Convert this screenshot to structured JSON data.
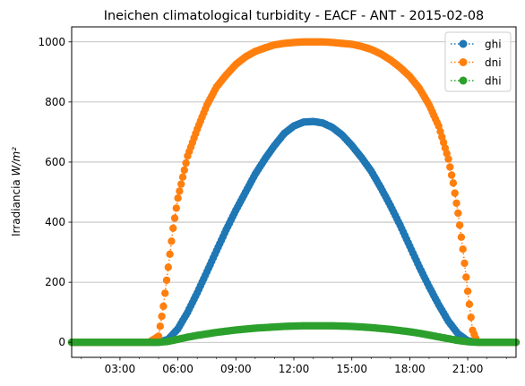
{
  "chart_data": {
    "type": "line",
    "title": "Ineichen climatological turbidity - EACF - ANT - 2015-02-08",
    "xlabel": "",
    "ylabel_prefix": "Irradiancia ",
    "ylabel_unit": "W/m²",
    "x_range_hours": [
      0.5,
      23.5
    ],
    "ylim": [
      -50,
      1050
    ],
    "x_tick_labels": [
      {
        "hour": 3,
        "label": "03:00"
      },
      {
        "hour": 6,
        "label": "06:00"
      },
      {
        "hour": 9,
        "label": "09:00"
      },
      {
        "hour": 12,
        "label": "12:00"
      },
      {
        "hour": 15,
        "label": "15:00"
      },
      {
        "hour": 18,
        "label": "18:00"
      },
      {
        "hour": 21,
        "label": "21:00"
      }
    ],
    "y_ticks": [
      0,
      200,
      400,
      600,
      800,
      1000
    ],
    "grid": "horizontal",
    "legend_position": "top-right",
    "series": [
      {
        "name": "ghi",
        "color": "#1f77b4",
        "points": [
          [
            0.5,
            0
          ],
          [
            1,
            0
          ],
          [
            1.5,
            0
          ],
          [
            2,
            0
          ],
          [
            2.5,
            0
          ],
          [
            3,
            0
          ],
          [
            3.5,
            0
          ],
          [
            4,
            0
          ],
          [
            4.5,
            0
          ],
          [
            5,
            0
          ],
          [
            5.5,
            10
          ],
          [
            6,
            45
          ],
          [
            6.5,
            100
          ],
          [
            7,
            165
          ],
          [
            7.5,
            235
          ],
          [
            8,
            305
          ],
          [
            8.5,
            375
          ],
          [
            9,
            440
          ],
          [
            9.5,
            500
          ],
          [
            10,
            560
          ],
          [
            10.5,
            610
          ],
          [
            11,
            655
          ],
          [
            11.5,
            695
          ],
          [
            12,
            720
          ],
          [
            12.5,
            733
          ],
          [
            13,
            735
          ],
          [
            13.5,
            730
          ],
          [
            14,
            715
          ],
          [
            14.5,
            690
          ],
          [
            15,
            655
          ],
          [
            15.5,
            615
          ],
          [
            16,
            570
          ],
          [
            16.5,
            515
          ],
          [
            17,
            455
          ],
          [
            17.5,
            390
          ],
          [
            18,
            320
          ],
          [
            18.5,
            250
          ],
          [
            19,
            185
          ],
          [
            19.5,
            125
          ],
          [
            20,
            70
          ],
          [
            20.5,
            28
          ],
          [
            21,
            5
          ],
          [
            21.5,
            0
          ],
          [
            22,
            0
          ],
          [
            22.5,
            0
          ],
          [
            23,
            0
          ],
          [
            23.5,
            0
          ]
        ]
      },
      {
        "name": "dni",
        "color": "#ff7f0e",
        "points": [
          [
            0.5,
            0
          ],
          [
            1,
            0
          ],
          [
            1.5,
            0
          ],
          [
            2,
            0
          ],
          [
            2.5,
            0
          ],
          [
            3,
            0
          ],
          [
            3.5,
            0
          ],
          [
            4,
            0
          ],
          [
            4.5,
            0
          ],
          [
            5,
            20
          ],
          [
            5.25,
            120
          ],
          [
            5.5,
            250
          ],
          [
            5.75,
            380
          ],
          [
            6,
            480
          ],
          [
            6.5,
            620
          ],
          [
            7,
            710
          ],
          [
            7.5,
            790
          ],
          [
            8,
            850
          ],
          [
            8.5,
            890
          ],
          [
            9,
            925
          ],
          [
            9.5,
            950
          ],
          [
            10,
            968
          ],
          [
            10.5,
            980
          ],
          [
            11,
            990
          ],
          [
            11.5,
            995
          ],
          [
            12,
            998
          ],
          [
            12.5,
            1000
          ],
          [
            13,
            1000
          ],
          [
            13.5,
            1000
          ],
          [
            14,
            998
          ],
          [
            14.5,
            995
          ],
          [
            15,
            992
          ],
          [
            15.5,
            985
          ],
          [
            16,
            975
          ],
          [
            16.5,
            960
          ],
          [
            17,
            940
          ],
          [
            17.5,
            915
          ],
          [
            18,
            885
          ],
          [
            18.5,
            845
          ],
          [
            19,
            790
          ],
          [
            19.5,
            720
          ],
          [
            20,
            610
          ],
          [
            20.25,
            530
          ],
          [
            20.5,
            430
          ],
          [
            20.75,
            310
          ],
          [
            21,
            170
          ],
          [
            21.25,
            40
          ],
          [
            21.5,
            0
          ],
          [
            22,
            0
          ],
          [
            22.5,
            0
          ],
          [
            23,
            0
          ],
          [
            23.5,
            0
          ]
        ]
      },
      {
        "name": "dhi",
        "color": "#2ca02c",
        "points": [
          [
            0.5,
            0
          ],
          [
            1,
            0
          ],
          [
            1.5,
            0
          ],
          [
            2,
            0
          ],
          [
            2.5,
            0
          ],
          [
            3,
            0
          ],
          [
            3.5,
            0
          ],
          [
            4,
            0
          ],
          [
            4.5,
            0
          ],
          [
            5,
            0
          ],
          [
            5.5,
            3
          ],
          [
            6,
            10
          ],
          [
            6.5,
            17
          ],
          [
            7,
            23
          ],
          [
            7.5,
            28
          ],
          [
            8,
            33
          ],
          [
            8.5,
            37
          ],
          [
            9,
            41
          ],
          [
            9.5,
            44
          ],
          [
            10,
            47
          ],
          [
            10.5,
            49
          ],
          [
            11,
            51
          ],
          [
            11.5,
            53
          ],
          [
            12,
            54
          ],
          [
            12.5,
            55
          ],
          [
            13,
            55
          ],
          [
            13.5,
            55
          ],
          [
            14,
            55
          ],
          [
            14.5,
            54
          ],
          [
            15,
            53
          ],
          [
            15.5,
            51
          ],
          [
            16,
            49
          ],
          [
            16.5,
            46
          ],
          [
            17,
            43
          ],
          [
            17.5,
            39
          ],
          [
            18,
            35
          ],
          [
            18.5,
            30
          ],
          [
            19,
            24
          ],
          [
            19.5,
            18
          ],
          [
            20,
            12
          ],
          [
            20.5,
            6
          ],
          [
            21,
            2
          ],
          [
            21.5,
            0
          ],
          [
            22,
            0
          ],
          [
            22.5,
            0
          ],
          [
            23,
            0
          ],
          [
            23.5,
            0
          ]
        ]
      }
    ]
  }
}
